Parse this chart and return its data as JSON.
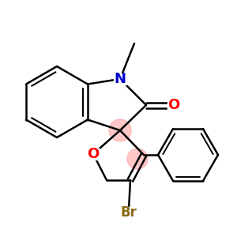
{
  "background": "#ffffff",
  "atom_colors": {
    "N": "#0000cc",
    "O_carbonyl": "#ff0000",
    "O_ring": "#ff0000",
    "Br": "#8b6914",
    "C": "#000000"
  },
  "spiro_highlight_color": "#ff9999",
  "spiro_highlight_alpha": 0.55,
  "lw": 1.8,
  "figsize": [
    3.0,
    3.0
  ],
  "dpi": 100
}
